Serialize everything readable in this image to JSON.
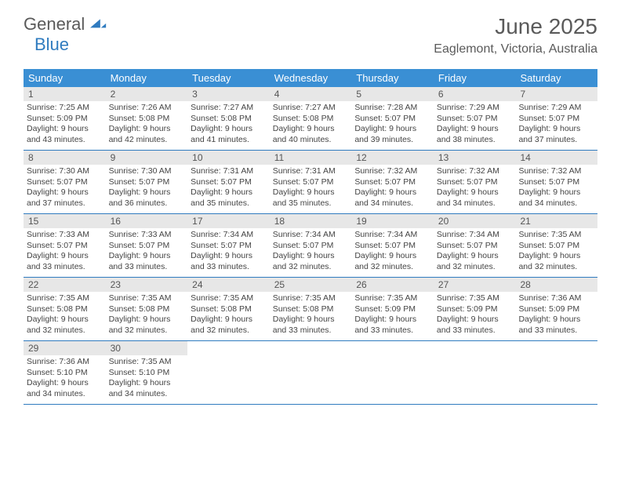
{
  "logo": {
    "word1": "General",
    "word2": "Blue",
    "triangle_color": "#2f7bbf"
  },
  "title": "June 2025",
  "location": "Eaglemont, Victoria, Australia",
  "colors": {
    "header_bg": "#3a8fd4",
    "header_text": "#ffffff",
    "border": "#2f7bbf",
    "daynum_bg": "#e7e7e7",
    "body_text": "#444444",
    "title_text": "#5a5a5a"
  },
  "typography": {
    "title_fontsize": 28,
    "location_fontsize": 16,
    "dayhead_fontsize": 13,
    "daynum_fontsize": 12,
    "cell_fontsize": 10.5
  },
  "day_headers": [
    "Sunday",
    "Monday",
    "Tuesday",
    "Wednesday",
    "Thursday",
    "Friday",
    "Saturday"
  ],
  "weeks": [
    [
      {
        "n": "1",
        "sunrise": "7:25 AM",
        "sunset": "5:09 PM",
        "daylight": "9 hours and 43 minutes."
      },
      {
        "n": "2",
        "sunrise": "7:26 AM",
        "sunset": "5:08 PM",
        "daylight": "9 hours and 42 minutes."
      },
      {
        "n": "3",
        "sunrise": "7:27 AM",
        "sunset": "5:08 PM",
        "daylight": "9 hours and 41 minutes."
      },
      {
        "n": "4",
        "sunrise": "7:27 AM",
        "sunset": "5:08 PM",
        "daylight": "9 hours and 40 minutes."
      },
      {
        "n": "5",
        "sunrise": "7:28 AM",
        "sunset": "5:07 PM",
        "daylight": "9 hours and 39 minutes."
      },
      {
        "n": "6",
        "sunrise": "7:29 AM",
        "sunset": "5:07 PM",
        "daylight": "9 hours and 38 minutes."
      },
      {
        "n": "7",
        "sunrise": "7:29 AM",
        "sunset": "5:07 PM",
        "daylight": "9 hours and 37 minutes."
      }
    ],
    [
      {
        "n": "8",
        "sunrise": "7:30 AM",
        "sunset": "5:07 PM",
        "daylight": "9 hours and 37 minutes."
      },
      {
        "n": "9",
        "sunrise": "7:30 AM",
        "sunset": "5:07 PM",
        "daylight": "9 hours and 36 minutes."
      },
      {
        "n": "10",
        "sunrise": "7:31 AM",
        "sunset": "5:07 PM",
        "daylight": "9 hours and 35 minutes."
      },
      {
        "n": "11",
        "sunrise": "7:31 AM",
        "sunset": "5:07 PM",
        "daylight": "9 hours and 35 minutes."
      },
      {
        "n": "12",
        "sunrise": "7:32 AM",
        "sunset": "5:07 PM",
        "daylight": "9 hours and 34 minutes."
      },
      {
        "n": "13",
        "sunrise": "7:32 AM",
        "sunset": "5:07 PM",
        "daylight": "9 hours and 34 minutes."
      },
      {
        "n": "14",
        "sunrise": "7:32 AM",
        "sunset": "5:07 PM",
        "daylight": "9 hours and 34 minutes."
      }
    ],
    [
      {
        "n": "15",
        "sunrise": "7:33 AM",
        "sunset": "5:07 PM",
        "daylight": "9 hours and 33 minutes."
      },
      {
        "n": "16",
        "sunrise": "7:33 AM",
        "sunset": "5:07 PM",
        "daylight": "9 hours and 33 minutes."
      },
      {
        "n": "17",
        "sunrise": "7:34 AM",
        "sunset": "5:07 PM",
        "daylight": "9 hours and 33 minutes."
      },
      {
        "n": "18",
        "sunrise": "7:34 AM",
        "sunset": "5:07 PM",
        "daylight": "9 hours and 32 minutes."
      },
      {
        "n": "19",
        "sunrise": "7:34 AM",
        "sunset": "5:07 PM",
        "daylight": "9 hours and 32 minutes."
      },
      {
        "n": "20",
        "sunrise": "7:34 AM",
        "sunset": "5:07 PM",
        "daylight": "9 hours and 32 minutes."
      },
      {
        "n": "21",
        "sunrise": "7:35 AM",
        "sunset": "5:07 PM",
        "daylight": "9 hours and 32 minutes."
      }
    ],
    [
      {
        "n": "22",
        "sunrise": "7:35 AM",
        "sunset": "5:08 PM",
        "daylight": "9 hours and 32 minutes."
      },
      {
        "n": "23",
        "sunrise": "7:35 AM",
        "sunset": "5:08 PM",
        "daylight": "9 hours and 32 minutes."
      },
      {
        "n": "24",
        "sunrise": "7:35 AM",
        "sunset": "5:08 PM",
        "daylight": "9 hours and 32 minutes."
      },
      {
        "n": "25",
        "sunrise": "7:35 AM",
        "sunset": "5:08 PM",
        "daylight": "9 hours and 33 minutes."
      },
      {
        "n": "26",
        "sunrise": "7:35 AM",
        "sunset": "5:09 PM",
        "daylight": "9 hours and 33 minutes."
      },
      {
        "n": "27",
        "sunrise": "7:35 AM",
        "sunset": "5:09 PM",
        "daylight": "9 hours and 33 minutes."
      },
      {
        "n": "28",
        "sunrise": "7:36 AM",
        "sunset": "5:09 PM",
        "daylight": "9 hours and 33 minutes."
      }
    ],
    [
      {
        "n": "29",
        "sunrise": "7:36 AM",
        "sunset": "5:10 PM",
        "daylight": "9 hours and 34 minutes."
      },
      {
        "n": "30",
        "sunrise": "7:35 AM",
        "sunset": "5:10 PM",
        "daylight": "9 hours and 34 minutes."
      },
      null,
      null,
      null,
      null,
      null
    ]
  ],
  "labels": {
    "sunrise": "Sunrise:",
    "sunset": "Sunset:",
    "daylight": "Daylight:"
  }
}
